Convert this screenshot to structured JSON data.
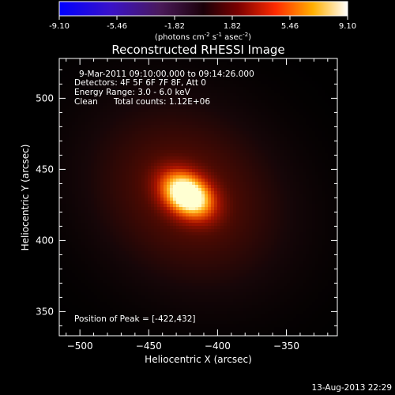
{
  "chart_data": {
    "type": "heatmap",
    "title": "Reconstructed RHESSI Image",
    "xlabel": "Heliocentric X (arcsec)",
    "ylabel": "Heliocentric Y (arcsec)",
    "xlim": [
      -515,
      -313
    ],
    "ylim": [
      333,
      528
    ],
    "x_ticks": [
      -500,
      -450,
      -400,
      -350
    ],
    "y_ticks": [
      350,
      400,
      450,
      500
    ],
    "colorbar": {
      "ticks": [
        "-9.10",
        "-5.46",
        "-1.82",
        "1.82",
        "5.46",
        "9.10"
      ],
      "range": [
        -9.1,
        9.1
      ],
      "units": "(photons cm",
      "units_sup1": "-2",
      "units_mid": " s",
      "units_sup2": "-1",
      "units_end": " asec",
      "units_sup3": "-2",
      "units_close": ")"
    },
    "annotations": {
      "time_range": "9-Mar-2011 09:10:00.000 to 09:14:26.000",
      "detectors": "Detectors: 4F 5F 6F 7F 8F, Att 0",
      "energy_range": "Energy Range: 3.0 - 6.0 keV",
      "method": "Clean",
      "total_counts": "Total counts: 1.12E+06",
      "peak_position": "Position of Peak = [-422,432]"
    },
    "peak": {
      "x": -422,
      "y": 432
    },
    "grid": false
  },
  "footer_date": "13-Aug-2013 22:29"
}
